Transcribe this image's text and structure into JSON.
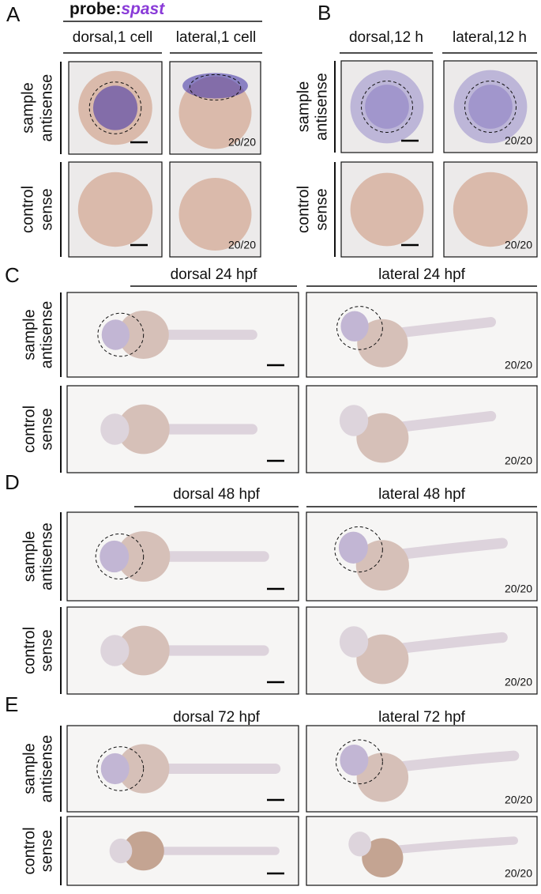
{
  "panels": [
    {
      "letter": "A",
      "probe": {
        "prefix": "probe:",
        "gene": "spast"
      },
      "columns": [
        "dorsal,1 cell",
        "lateral,1 cell"
      ],
      "rows": [
        {
          "label": [
            "sample",
            "antisense"
          ],
          "count": "20/20"
        },
        {
          "label": [
            "control",
            "sense"
          ],
          "count": "20/20"
        }
      ]
    },
    {
      "letter": "B",
      "columns": [
        "dorsal,12 h",
        "lateral,12 h"
      ],
      "rows": [
        {
          "label": [
            "sample",
            "antisense"
          ],
          "count": "20/20"
        },
        {
          "label": [
            "control",
            "sense"
          ],
          "count": "20/20"
        }
      ]
    },
    {
      "letter": "C",
      "columns": [
        "dorsal 24 hpf",
        "lateral 24 hpf"
      ],
      "rows": [
        {
          "label": [
            "sample",
            "antisense"
          ],
          "count": "20/20"
        },
        {
          "label": [
            "control",
            "sense"
          ],
          "count": "20/20"
        }
      ]
    },
    {
      "letter": "D",
      "columns": [
        "dorsal 48 hpf",
        "lateral 48 hpf"
      ],
      "rows": [
        {
          "label": [
            "sample",
            "antisense"
          ],
          "count": "20/20"
        },
        {
          "label": [
            "control",
            "sense"
          ],
          "count": "20/20"
        }
      ]
    },
    {
      "letter": "E",
      "columns": [
        "dorsal 72 hpf",
        "lateral 72 hpf"
      ],
      "rows": [
        {
          "label": [
            "sample",
            "antisense"
          ],
          "count": "20/20"
        },
        {
          "label": [
            "control",
            "sense"
          ],
          "count": "20/20"
        }
      ]
    }
  ]
}
